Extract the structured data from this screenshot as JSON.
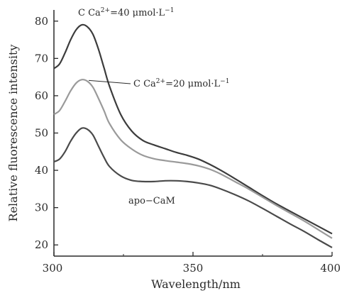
{
  "chart_data": {
    "type": "line",
    "title": "",
    "xlabel": "Wavelength/nm",
    "ylabel": "Relative fluorescence intensity",
    "xlim": [
      300,
      400
    ],
    "ylim": [
      17,
      83
    ],
    "xticks": [
      300,
      350,
      400
    ],
    "yticks": [
      20,
      30,
      40,
      50,
      60,
      70,
      80
    ],
    "grid": false,
    "series": [
      {
        "name": "C Ca2+=40 μmol·L−1",
        "color": "#3c3c3c",
        "x": [
          300,
          302,
          304,
          306,
          308,
          310,
          312,
          314,
          316,
          318,
          320,
          324,
          328,
          332,
          336,
          340,
          344,
          348,
          352,
          356,
          360,
          365,
          370,
          375,
          380,
          385,
          390,
          395,
          400
        ],
        "y": [
          67.3,
          68.5,
          71.5,
          75,
          77.7,
          79,
          78.5,
          76.5,
          72.5,
          67.5,
          62.5,
          55,
          50.5,
          48,
          46.8,
          45.8,
          44.8,
          44,
          43,
          41.6,
          40,
          37.8,
          35.5,
          33.2,
          31,
          29,
          27,
          25,
          23
        ]
      },
      {
        "name": "C Ca2+=20 μmol·L−1",
        "color": "#9a9a9a",
        "x": [
          300,
          302,
          304,
          306,
          308,
          310,
          312,
          314,
          316,
          318,
          320,
          324,
          328,
          332,
          336,
          340,
          344,
          348,
          352,
          356,
          360,
          365,
          370,
          375,
          380,
          385,
          390,
          395,
          400
        ],
        "y": [
          55,
          56,
          58.5,
          61.3,
          63.4,
          64.3,
          63.9,
          62.3,
          59.3,
          56,
          52.5,
          48.2,
          45.7,
          44,
          43.1,
          42.6,
          42.2,
          41.8,
          41.2,
          40.3,
          39,
          37,
          35,
          32.8,
          30.6,
          28.5,
          26.4,
          24.1,
          21.8
        ]
      },
      {
        "name": "apo-CaM",
        "color": "#4a4a4a",
        "x": [
          300,
          302,
          304,
          306,
          308,
          310,
          312,
          314,
          316,
          318,
          320,
          324,
          328,
          332,
          336,
          340,
          344,
          348,
          352,
          356,
          360,
          365,
          370,
          375,
          380,
          385,
          390,
          395,
          400
        ],
        "y": [
          42.3,
          43,
          45,
          47.8,
          50,
          51.3,
          51,
          49.5,
          46.5,
          43.5,
          41,
          38.5,
          37.3,
          37,
          37,
          37.2,
          37.2,
          37,
          36.6,
          36,
          35,
          33.5,
          31.8,
          29.8,
          27.7,
          25.6,
          23.6,
          21.4,
          19.3
        ]
      }
    ]
  },
  "annotations": [
    {
      "id": "ann-40",
      "prefix": "C Ca",
      "sup": "2+",
      "mid": "=40 μmol·L",
      "sup2": "−1",
      "target_x": 312,
      "target_y": 79
    },
    {
      "id": "ann-20",
      "prefix": "C Ca",
      "sup": "2+",
      "mid": "=20 μmol·L",
      "sup2": "−1",
      "target_x": 312,
      "target_y": 64.3
    },
    {
      "id": "ann-apo",
      "prefix": "apo−CaM",
      "sup": "",
      "mid": "",
      "sup2": "",
      "target_x": 340,
      "target_y": 37.2
    }
  ]
}
